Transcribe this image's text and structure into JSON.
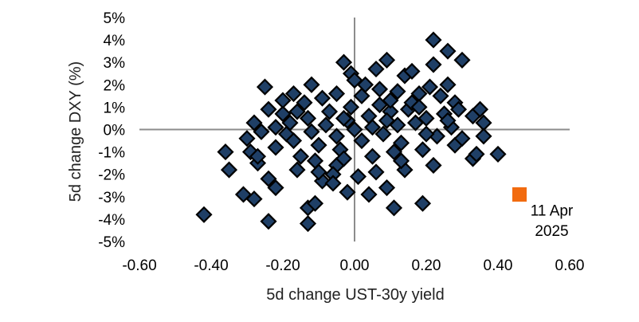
{
  "chart_data": {
    "type": "scatter",
    "xlabel": "5d change UST-30y yield",
    "ylabel": "5d change DXY (%)",
    "xlim": [
      -0.6,
      0.6
    ],
    "ylim": [
      -5,
      5
    ],
    "x_ticks": [
      "-0.60",
      "-0.40",
      "-0.20",
      "0.00",
      "0.20",
      "0.40",
      "0.60"
    ],
    "y_ticks": [
      "5%",
      "4%",
      "3%",
      "2%",
      "1%",
      "0%",
      "-1%",
      "-2%",
      "-3%",
      "-4%",
      "-5%"
    ],
    "grid": false,
    "legend": "none",
    "series": [
      {
        "marker": "diamond",
        "color": "#1f3f66",
        "points": [
          [
            -0.42,
            -3.8
          ],
          [
            -0.36,
            -1.0
          ],
          [
            -0.35,
            -1.8
          ],
          [
            -0.31,
            -2.9
          ],
          [
            -0.28,
            -3.1
          ],
          [
            -0.27,
            -1.5
          ],
          [
            -0.24,
            -4.1
          ],
          [
            -0.22,
            -2.6
          ],
          [
            -0.24,
            -2.2
          ],
          [
            -0.25,
            1.9
          ],
          [
            -0.2,
            0.7
          ],
          [
            -0.18,
            0.3
          ],
          [
            -0.13,
            -3.5
          ],
          [
            -0.13,
            -4.2
          ],
          [
            -0.11,
            -3.3
          ],
          [
            -0.09,
            -2.3
          ],
          [
            -0.05,
            -1.6
          ],
          [
            -0.03,
            3.0
          ],
          [
            -0.01,
            2.5
          ],
          [
            0.0,
            2.2
          ],
          [
            -0.02,
            -2.8
          ],
          [
            0.04,
            -2.9
          ],
          [
            0.06,
            2.7
          ],
          [
            0.09,
            3.1
          ],
          [
            0.09,
            -2.6
          ],
          [
            0.11,
            -3.5
          ],
          [
            0.14,
            2.4
          ],
          [
            0.16,
            2.6
          ],
          [
            0.19,
            -3.3
          ],
          [
            0.22,
            4.0
          ],
          [
            0.22,
            2.9
          ],
          [
            0.26,
            3.5
          ],
          [
            0.3,
            3.1
          ],
          [
            0.26,
            2.0
          ],
          [
            0.24,
            1.5
          ],
          [
            0.28,
            1.2
          ],
          [
            0.33,
            0.6
          ],
          [
            0.36,
            0.3
          ],
          [
            0.36,
            -0.3
          ],
          [
            0.35,
            0.9
          ],
          [
            0.33,
            -1.3
          ],
          [
            0.34,
            -1.1
          ],
          [
            0.4,
            -1.1
          ],
          [
            0.28,
            -0.7
          ],
          [
            0.22,
            -1.6
          ],
          [
            0.14,
            -1.8
          ],
          [
            0.06,
            -1.9
          ],
          [
            -0.06,
            -2.0
          ],
          [
            -0.16,
            -1.8
          ],
          [
            -0.29,
            -1.0
          ],
          [
            -0.3,
            -0.4
          ],
          [
            -0.28,
            0.3
          ],
          [
            -0.24,
            0.9
          ],
          [
            -0.17,
            1.6
          ],
          [
            -0.12,
            2.0
          ],
          [
            -0.05,
            1.6
          ],
          [
            0.02,
            1.5
          ],
          [
            0.07,
            1.8
          ],
          [
            0.12,
            1.7
          ],
          [
            0.18,
            1.6
          ],
          [
            0.21,
            1.9
          ],
          [
            0.25,
            0.7
          ],
          [
            0.27,
            0.1
          ],
          [
            0.3,
            -0.4
          ],
          [
            0.23,
            -0.3
          ],
          [
            0.17,
            0.3
          ],
          [
            0.1,
            0.8
          ],
          [
            0.04,
            0.6
          ],
          [
            -0.02,
            0.4
          ],
          [
            -0.08,
            0.2
          ],
          [
            -0.13,
            0.5
          ],
          [
            -0.19,
            -0.2
          ],
          [
            -0.22,
            -0.8
          ],
          [
            -0.15,
            -1.2
          ],
          [
            -0.1,
            -0.7
          ],
          [
            -0.04,
            -0.9
          ],
          [
            0.02,
            -0.5
          ],
          [
            0.08,
            -0.2
          ],
          [
            0.13,
            -0.6
          ],
          [
            0.19,
            -0.9
          ],
          [
            0.15,
            0.9
          ],
          [
            0.07,
            1.1
          ],
          [
            -0.01,
            1.0
          ],
          [
            -0.07,
            0.8
          ],
          [
            -0.14,
            1.2
          ],
          [
            -0.2,
            1.3
          ],
          [
            -0.26,
            -0.1
          ],
          [
            -0.17,
            -0.5
          ],
          [
            -0.11,
            -1.4
          ],
          [
            -0.03,
            -1.3
          ],
          [
            0.05,
            -1.2
          ],
          [
            0.11,
            -1.0
          ],
          [
            0.2,
            -0.2
          ],
          [
            0.26,
            0.4
          ],
          [
            0.12,
            0.2
          ],
          [
            0.05,
            0.1
          ],
          [
            -0.05,
            -0.3
          ],
          [
            -0.12,
            -0.1
          ],
          [
            0.0,
            0.0
          ],
          [
            0.09,
            0.4
          ],
          [
            -0.09,
            1.4
          ],
          [
            0.16,
            1.2
          ],
          [
            0.2,
            0.5
          ],
          [
            -0.22,
            0.1
          ],
          [
            -0.27,
            -1.2
          ],
          [
            0.29,
            0.9
          ],
          [
            0.13,
            -1.4
          ],
          [
            -0.06,
            -2.4
          ],
          [
            0.01,
            -2.1
          ],
          [
            0.1,
            1.3
          ],
          [
            -0.16,
            0.8
          ],
          [
            0.03,
            2.0
          ],
          [
            -0.1,
            -1.9
          ],
          [
            0.18,
            1.0
          ],
          [
            -0.03,
            0.5
          ]
        ]
      },
      {
        "marker": "square",
        "color": "#f26b0f",
        "points": [
          [
            0.46,
            -2.9
          ]
        ]
      }
    ],
    "annotations": [
      {
        "text": "11 Apr",
        "x": 0.55,
        "y": -3.6
      },
      {
        "text": "2025",
        "x": 0.55,
        "y": -4.5
      }
    ]
  }
}
